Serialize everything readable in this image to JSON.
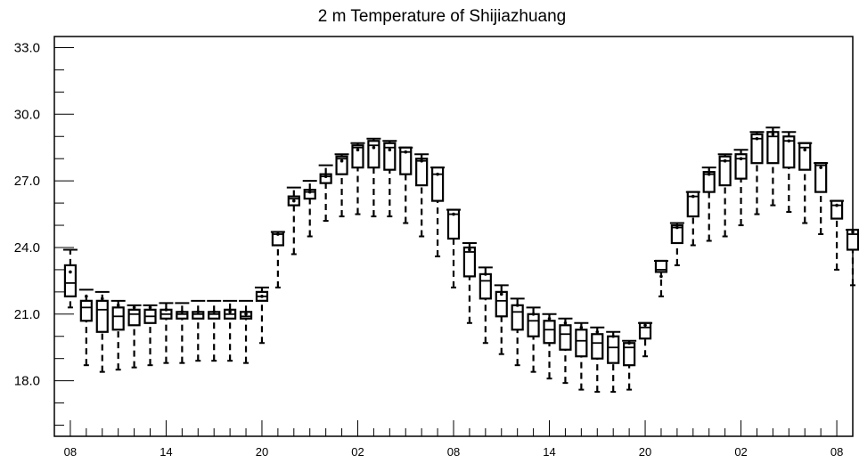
{
  "chart_data": {
    "type": "box",
    "title": "2 m Temperature of Shijiazhuang",
    "xlabel": "",
    "ylabel": "",
    "ylim": [
      15.5,
      33.5
    ],
    "y_ticks": [
      "33.0",
      "30.0",
      "27.0",
      "24.0",
      "21.0",
      "18.0"
    ],
    "x_tick_labels": [
      "08",
      "14",
      "20",
      "02",
      "08",
      "14",
      "20",
      "02",
      "08"
    ],
    "x_tick_hours": [
      0,
      6,
      12,
      18,
      24,
      30,
      36,
      42,
      48
    ],
    "x_range_hours": [
      -1,
      49
    ],
    "grid": false,
    "boxes": [
      {
        "hour": 0,
        "whisker_low": 21.3,
        "q1": 21.8,
        "median": 22.4,
        "q3": 23.2,
        "whisker_high": 23.9,
        "point": 22.9
      },
      {
        "hour": 1,
        "whisker_low": 18.7,
        "q1": 20.7,
        "median": 21.3,
        "q3": 21.6,
        "whisker_high": 22.1,
        "point": 21.8
      },
      {
        "hour": 2,
        "whisker_low": 18.4,
        "q1": 20.2,
        "median": 21.2,
        "q3": 21.6,
        "whisker_high": 22.0,
        "point": 21.7
      },
      {
        "hour": 3,
        "whisker_low": 18.5,
        "q1": 20.3,
        "median": 20.9,
        "q3": 21.3,
        "whisker_high": 21.6,
        "point": 21.4
      },
      {
        "hour": 4,
        "whisker_low": 18.6,
        "q1": 20.5,
        "median": 21.0,
        "q3": 21.2,
        "whisker_high": 21.4,
        "point": 21.3
      },
      {
        "hour": 5,
        "whisker_low": 18.7,
        "q1": 20.6,
        "median": 20.9,
        "q3": 21.2,
        "whisker_high": 21.4,
        "point": 21.3
      },
      {
        "hour": 6,
        "whisker_low": 18.8,
        "q1": 20.8,
        "median": 21.0,
        "q3": 21.2,
        "whisker_high": 21.5,
        "point": 21.2
      },
      {
        "hour": 7,
        "whisker_low": 18.8,
        "q1": 20.8,
        "median": 21.0,
        "q3": 21.1,
        "whisker_high": 21.5,
        "point": 21.1
      },
      {
        "hour": 8,
        "whisker_low": 18.9,
        "q1": 20.8,
        "median": 21.0,
        "q3": 21.1,
        "whisker_high": 21.6,
        "point": 21.1
      },
      {
        "hour": 9,
        "whisker_low": 18.9,
        "q1": 20.8,
        "median": 21.0,
        "q3": 21.1,
        "whisker_high": 21.6,
        "point": 21.1
      },
      {
        "hour": 10,
        "whisker_low": 18.9,
        "q1": 20.8,
        "median": 21.0,
        "q3": 21.2,
        "whisker_high": 21.6,
        "point": 21.1
      },
      {
        "hour": 11,
        "whisker_low": 18.8,
        "q1": 20.8,
        "median": 20.9,
        "q3": 21.1,
        "whisker_high": 21.6,
        "point": 21.0
      },
      {
        "hour": 12,
        "whisker_low": 19.7,
        "q1": 21.6,
        "median": 21.8,
        "q3": 22.0,
        "whisker_high": 22.2,
        "point": 21.8
      },
      {
        "hour": 13,
        "whisker_low": 22.2,
        "q1": 24.1,
        "median": 24.6,
        "q3": 24.7,
        "whisker_high": 24.7,
        "point": 24.6
      },
      {
        "hour": 14,
        "whisker_low": 23.7,
        "q1": 25.9,
        "median": 26.2,
        "q3": 26.3,
        "whisker_high": 26.7,
        "point": 26.1
      },
      {
        "hour": 15,
        "whisker_low": 24.5,
        "q1": 26.2,
        "median": 26.5,
        "q3": 26.6,
        "whisker_high": 27.0,
        "point": 26.5
      },
      {
        "hour": 16,
        "whisker_low": 25.2,
        "q1": 26.9,
        "median": 27.2,
        "q3": 27.3,
        "whisker_high": 27.7,
        "point": 27.2
      },
      {
        "hour": 17,
        "whisker_low": 25.4,
        "q1": 27.3,
        "median": 28.0,
        "q3": 28.1,
        "whisker_high": 28.2,
        "point": 27.9
      },
      {
        "hour": 18,
        "whisker_low": 25.5,
        "q1": 27.6,
        "median": 28.5,
        "q3": 28.6,
        "whisker_high": 28.7,
        "point": 28.4
      },
      {
        "hour": 19,
        "whisker_low": 25.4,
        "q1": 27.6,
        "median": 28.6,
        "q3": 28.8,
        "whisker_high": 28.9,
        "point": 28.5
      },
      {
        "hour": 20,
        "whisker_low": 25.4,
        "q1": 27.5,
        "median": 28.5,
        "q3": 28.7,
        "whisker_high": 28.8,
        "point": 28.4
      },
      {
        "hour": 21,
        "whisker_low": 25.1,
        "q1": 27.3,
        "median": 28.3,
        "q3": 28.5,
        "whisker_high": 28.5,
        "point": 28.3
      },
      {
        "hour": 22,
        "whisker_low": 24.5,
        "q1": 26.8,
        "median": 27.9,
        "q3": 28.0,
        "whisker_high": 28.2,
        "point": 27.9
      },
      {
        "hour": 23,
        "whisker_low": 23.6,
        "q1": 26.1,
        "median": 27.3,
        "q3": 27.6,
        "whisker_high": 27.6,
        "point": 27.3
      },
      {
        "hour": 24,
        "whisker_low": 22.2,
        "q1": 24.4,
        "median": 25.5,
        "q3": 25.7,
        "whisker_high": 25.7,
        "point": 25.5
      },
      {
        "hour": 25,
        "whisker_low": 20.6,
        "q1": 22.7,
        "median": 23.8,
        "q3": 24.0,
        "whisker_high": 24.2,
        "point": 23.9
      },
      {
        "hour": 26,
        "whisker_low": 19.7,
        "q1": 21.7,
        "median": 22.5,
        "q3": 22.8,
        "whisker_high": 23.1,
        "point": 22.8
      },
      {
        "hour": 27,
        "whisker_low": 19.2,
        "q1": 20.9,
        "median": 21.6,
        "q3": 22.0,
        "whisker_high": 22.3,
        "point": 21.9
      },
      {
        "hour": 28,
        "whisker_low": 18.7,
        "q1": 20.3,
        "median": 21.1,
        "q3": 21.4,
        "whisker_high": 21.7,
        "point": 21.4
      },
      {
        "hour": 29,
        "whisker_low": 18.4,
        "q1": 20.0,
        "median": 20.7,
        "q3": 21.0,
        "whisker_high": 21.3,
        "point": 21.0
      },
      {
        "hour": 30,
        "whisker_low": 18.1,
        "q1": 19.7,
        "median": 20.3,
        "q3": 20.7,
        "whisker_high": 21.0,
        "point": 20.8
      },
      {
        "hour": 31,
        "whisker_low": 17.9,
        "q1": 19.4,
        "median": 20.1,
        "q3": 20.5,
        "whisker_high": 20.8,
        "point": 20.6
      },
      {
        "hour": 32,
        "whisker_low": 17.6,
        "q1": 19.1,
        "median": 19.8,
        "q3": 20.3,
        "whisker_high": 20.6,
        "point": 20.4
      },
      {
        "hour": 33,
        "whisker_low": 17.5,
        "q1": 19.0,
        "median": 19.7,
        "q3": 20.1,
        "whisker_high": 20.4,
        "point": 20.2
      },
      {
        "hour": 34,
        "whisker_low": 17.5,
        "q1": 18.8,
        "median": 19.5,
        "q3": 20.0,
        "whisker_high": 20.2,
        "point": 20.0
      },
      {
        "hour": 35,
        "whisker_low": 17.6,
        "q1": 18.7,
        "median": 19.5,
        "q3": 19.7,
        "whisker_high": 19.8,
        "point": 19.7
      },
      {
        "hour": 36,
        "whisker_low": 19.1,
        "q1": 19.9,
        "median": 20.4,
        "q3": 20.6,
        "whisker_high": 20.6,
        "point": 20.5
      },
      {
        "hour": 37,
        "whisker_low": 21.8,
        "q1": 22.9,
        "median": 23.0,
        "q3": 23.4,
        "whisker_high": 23.4,
        "point": 22.7
      },
      {
        "hour": 38,
        "whisker_low": 23.2,
        "q1": 24.2,
        "median": 24.9,
        "q3": 25.0,
        "whisker_high": 25.1,
        "point": 24.9
      },
      {
        "hour": 39,
        "whisker_low": 24.1,
        "q1": 25.4,
        "median": 26.3,
        "q3": 26.5,
        "whisker_high": 26.5,
        "point": 26.3
      },
      {
        "hour": 40,
        "whisker_low": 24.3,
        "q1": 26.5,
        "median": 27.3,
        "q3": 27.4,
        "whisker_high": 27.6,
        "point": 27.3
      },
      {
        "hour": 41,
        "whisker_low": 24.5,
        "q1": 26.8,
        "median": 27.9,
        "q3": 28.1,
        "whisker_high": 28.2,
        "point": 27.9
      },
      {
        "hour": 42,
        "whisker_low": 25.0,
        "q1": 27.1,
        "median": 28.0,
        "q3": 28.2,
        "whisker_high": 28.4,
        "point": 28.0
      },
      {
        "hour": 43,
        "whisker_low": 25.5,
        "q1": 27.8,
        "median": 28.9,
        "q3": 29.1,
        "whisker_high": 29.2,
        "point": 28.9
      },
      {
        "hour": 44,
        "whisker_low": 25.9,
        "q1": 27.8,
        "median": 29.0,
        "q3": 29.2,
        "whisker_high": 29.4,
        "point": 29.1
      },
      {
        "hour": 45,
        "whisker_low": 25.6,
        "q1": 27.6,
        "median": 28.8,
        "q3": 29.0,
        "whisker_high": 29.2,
        "point": 28.8
      },
      {
        "hour": 46,
        "whisker_low": 25.1,
        "q1": 27.5,
        "median": 28.5,
        "q3": 28.7,
        "whisker_high": 28.7,
        "point": 28.4
      },
      {
        "hour": 47,
        "whisker_low": 24.6,
        "q1": 26.5,
        "median": 27.7,
        "q3": 27.8,
        "whisker_high": 27.8,
        "point": 27.6
      },
      {
        "hour": 48,
        "whisker_low": 23.0,
        "q1": 25.3,
        "median": 25.9,
        "q3": 26.1,
        "whisker_high": 26.1,
        "point": 25.9
      },
      {
        "hour": 49,
        "whisker_low": 22.3,
        "q1": 23.9,
        "median": 24.6,
        "q3": 24.8,
        "whisker_high": 24.8,
        "point": 24.7
      }
    ],
    "colors": {
      "background": "#ffffff",
      "ink": "#000000"
    }
  }
}
